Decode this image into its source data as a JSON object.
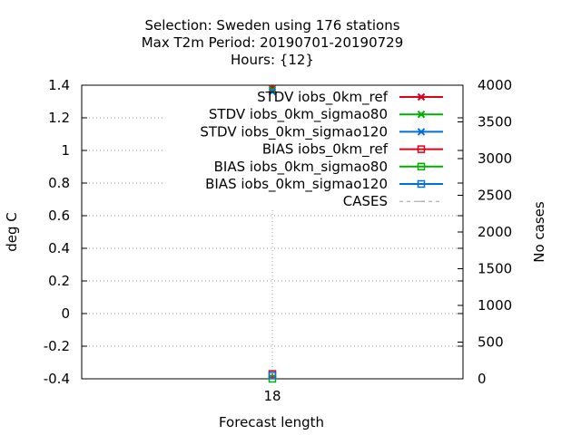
{
  "chart_data": {
    "type": "scatter",
    "title_lines": [
      "Selection: Sweden using    176 stations",
      "Max T2m    Period: 20190701-20190729",
      "Hours: {12}"
    ],
    "xlabel": "Forecast length",
    "ylabel": "deg C",
    "y2label": "No cases",
    "x": [
      18
    ],
    "x_ticks": [
      "18"
    ],
    "ylim": [
      -0.4,
      1.4
    ],
    "y_ticks": [
      "1.4",
      "1.2",
      "1",
      "0.8",
      "0.6",
      "0.4",
      "0.2",
      "0",
      "-0.2",
      "-0.4"
    ],
    "y_tick_values": [
      1.4,
      1.2,
      1.0,
      0.8,
      0.6,
      0.4,
      0.2,
      0.0,
      -0.2,
      -0.4
    ],
    "y2lim": [
      0,
      4000
    ],
    "y2_ticks": [
      "4000",
      "3500",
      "3000",
      "2500",
      "2000",
      "1500",
      "1000",
      "500",
      "0"
    ],
    "y2_tick_values": [
      4000,
      3500,
      3000,
      2500,
      2000,
      1500,
      1000,
      500,
      0
    ],
    "grid": true,
    "legend_position": "top-right",
    "series": [
      {
        "name": "STDV iobs_0km_ref",
        "values": [
          1.38
        ],
        "color": "#e0001a",
        "marker": "x",
        "axis": "y"
      },
      {
        "name": "STDV iobs_0km_sigmao80",
        "values": [
          1.37
        ],
        "color": "#00b000",
        "marker": "x",
        "axis": "y"
      },
      {
        "name": "STDV iobs_0km_sigmao120",
        "values": [
          1.36
        ],
        "color": "#0070d8",
        "marker": "x",
        "axis": "y"
      },
      {
        "name": "BIAS iobs_0km_ref",
        "values": [
          -0.37
        ],
        "color": "#e0001a",
        "marker": "square",
        "axis": "y"
      },
      {
        "name": "BIAS iobs_0km_sigmao80",
        "values": [
          -0.4
        ],
        "color": "#00b000",
        "marker": "square",
        "axis": "y"
      },
      {
        "name": "BIAS iobs_0km_sigmao120",
        "values": [
          -0.38
        ],
        "color": "#0070d8",
        "marker": "square",
        "axis": "y"
      },
      {
        "name": "CASES",
        "values": [
          2350
        ],
        "color": "#a0a0a0",
        "marker": "dash",
        "axis": "y2"
      }
    ]
  }
}
